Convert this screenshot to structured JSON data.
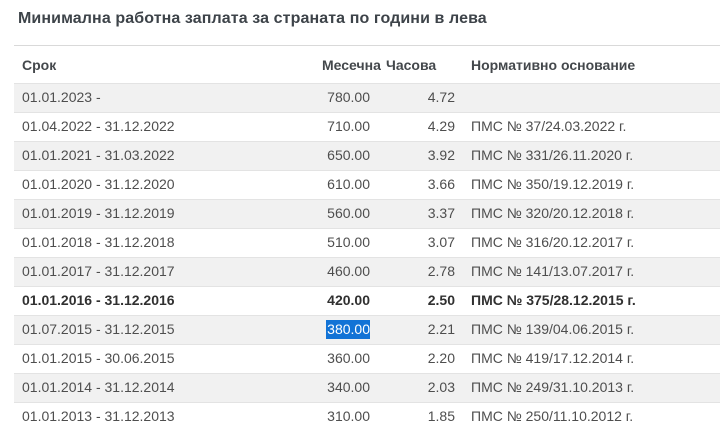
{
  "page": {
    "title": "Минимална работна заплата за страната по години в лева"
  },
  "table": {
    "columns": [
      {
        "key": "period",
        "label": "Срок"
      },
      {
        "key": "monthly",
        "label": "Месечна"
      },
      {
        "key": "hourly",
        "label": "Часова"
      },
      {
        "key": "basis",
        "label": "Нормативно основание"
      }
    ],
    "rows": [
      {
        "period": "01.01.2023 -",
        "monthly": "780.00",
        "hourly": "4.72",
        "basis": ""
      },
      {
        "period": "01.04.2022 - 31.12.2022",
        "monthly": "710.00",
        "hourly": "4.29",
        "basis": "ПМС № 37/24.03.2022 г."
      },
      {
        "period": "01.01.2021 - 31.03.2022",
        "monthly": "650.00",
        "hourly": "3.92",
        "basis": "ПМС № 331/26.11.2020 г."
      },
      {
        "period": "01.01.2020 - 31.12.2020",
        "monthly": "610.00",
        "hourly": "3.66",
        "basis": "ПМС № 350/19.12.2019 г."
      },
      {
        "period": "01.01.2019 - 31.12.2019",
        "monthly": "560.00",
        "hourly": "3.37",
        "basis": "ПМС № 320/20.12.2018 г."
      },
      {
        "period": "01.01.2018 - 31.12.2018",
        "monthly": "510.00",
        "hourly": "3.07",
        "basis": "ПМС № 316/20.12.2017 г."
      },
      {
        "period": "01.01.2017 - 31.12.2017",
        "monthly": "460.00",
        "hourly": "2.78",
        "basis": "ПМС № 141/13.07.2017 г."
      },
      {
        "period": "01.01.2016 - 31.12.2016",
        "monthly": "420.00",
        "hourly": "2.50",
        "basis": "ПМС № 375/28.12.2015 г.",
        "bold": true
      },
      {
        "period": "01.07.2015 - 31.12.2015",
        "monthly": "380.00",
        "hourly": "2.21",
        "basis": "ПМС № 139/04.06.2015 г.",
        "monthly_text_selected": true
      },
      {
        "period": "01.01.2015 - 30.06.2015",
        "monthly": "360.00",
        "hourly": "2.20",
        "basis": "ПМС № 419/17.12.2014 г."
      },
      {
        "period": "01.01.2014 - 31.12.2014",
        "monthly": "340.00",
        "hourly": "2.03",
        "basis": "ПМС № 249/31.10.2013 г."
      },
      {
        "period": "01.01.2013 - 31.12.2013",
        "monthly": "310.00",
        "hourly": "1.85",
        "basis": "ПМС № 250/11.10.2012 г."
      }
    ]
  },
  "colors": {
    "selection_bg": "#1273D6",
    "selection_text": "#FFFFFF",
    "alt_row_bg": "#F1F1F1",
    "row_border": "#E3E3E3",
    "table_top_border": "#D9D9D9",
    "title_text": "#3D4349",
    "header_text": "#44484C",
    "cell_text": "#4E4E4E",
    "bold_row_text": "#303030"
  }
}
